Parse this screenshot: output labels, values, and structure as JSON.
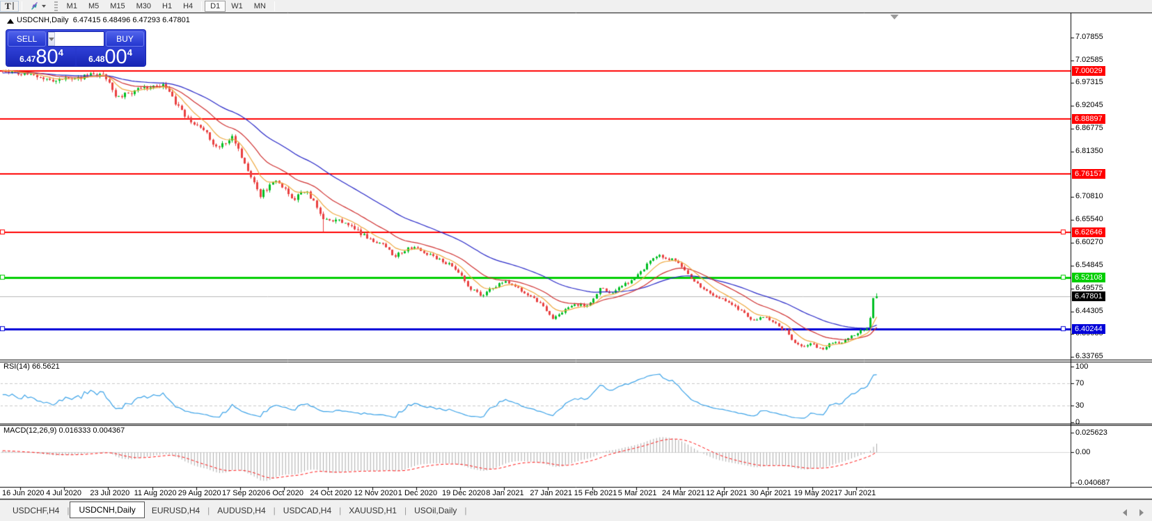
{
  "toolbar": {
    "text_tool": "T",
    "timeframes": [
      "M1",
      "M5",
      "M15",
      "M30",
      "H1",
      "H4",
      "D1",
      "W1",
      "MN"
    ],
    "active_timeframe": "D1"
  },
  "one_click": {
    "sell_label": "SELL",
    "buy_label": "BUY",
    "volume": "2.00",
    "sell_price_small": "6.47",
    "sell_price_big": "80",
    "sell_price_sup": "4",
    "buy_price_small": "6.48",
    "buy_price_big": "00",
    "buy_price_sup": "4"
  },
  "chart": {
    "symbol": "USDCNH,Daily",
    "ohlc": "6.47415 6.48496 6.47293 6.47801",
    "last_candle": {
      "open": 6.47415,
      "high": 6.48496,
      "low": 6.47293,
      "close": 6.47801
    },
    "price_axis_ticks": [
      "7.07855",
      "7.02585",
      "6.97315",
      "6.92045",
      "6.86775",
      "6.81350",
      "6.70810",
      "6.65540",
      "6.60270",
      "6.54845",
      "6.49575",
      "6.44305",
      "6.39035",
      "6.33765"
    ],
    "level_lines": [
      {
        "label": "7.00029",
        "price": 7.00029,
        "color": "#ff0000",
        "width": 2,
        "handles": false
      },
      {
        "label": "6.88897",
        "price": 6.88897,
        "color": "#ff0000",
        "width": 2,
        "handles": false
      },
      {
        "label": "6.76157",
        "price": 6.76157,
        "color": "#ff0000",
        "width": 2,
        "handles": false
      },
      {
        "label": "6.62646",
        "price": 6.62646,
        "color": "#ff0000",
        "width": 2,
        "handles": true
      },
      {
        "label": "6.52108",
        "price": 6.52108,
        "color": "#00ce00",
        "width": 3,
        "handles": true
      },
      {
        "label": "6.40244",
        "price": 6.40244,
        "color": "#0000d8",
        "width": 3,
        "handles": true
      }
    ],
    "current_price": {
      "label": "6.47801",
      "price": 6.47801,
      "line_color": "#b8b8b8",
      "badge_color": "#000000"
    },
    "date_labels": [
      "16 Jun 2020",
      "4 Jul 2020",
      "23 Jul 2020",
      "11 Aug 2020",
      "29 Aug 2020",
      "17 Sep 2020",
      "6 Oct 2020",
      "24 Oct 2020",
      "12 Nov 2020",
      "1 Dec 2020",
      "19 Dec 2020",
      "8 Jan 2021",
      "27 Jan 2021",
      "15 Feb 2021",
      "5 Mar 2021",
      "24 Mar 2021",
      "12 Apr 2021",
      "30 Apr 2021",
      "19 May 2021",
      "7 Jun 2021"
    ],
    "price_path": [
      [
        -350,
        6.962
      ],
      [
        -200,
        6.988
      ],
      [
        -90,
        7.0
      ],
      [
        -20,
        7.005
      ],
      [
        20,
        6.998
      ],
      [
        50,
        6.99
      ],
      [
        75,
        6.978
      ],
      [
        110,
        6.986
      ],
      [
        148,
        6.996
      ],
      [
        168,
        6.937
      ],
      [
        200,
        6.962
      ],
      [
        235,
        6.967
      ],
      [
        262,
        6.9
      ],
      [
        290,
        6.868
      ],
      [
        312,
        6.818
      ],
      [
        332,
        6.852
      ],
      [
        352,
        6.78
      ],
      [
        372,
        6.712
      ],
      [
        396,
        6.75
      ],
      [
        420,
        6.705
      ],
      [
        440,
        6.722
      ],
      [
        462,
        6.663
      ],
      [
        482,
        6.655
      ],
      [
        505,
        6.64
      ],
      [
        522,
        6.618
      ],
      [
        548,
        6.598
      ],
      [
        565,
        6.572
      ],
      [
        590,
        6.592
      ],
      [
        612,
        6.578
      ],
      [
        632,
        6.562
      ],
      [
        652,
        6.545
      ],
      [
        672,
        6.5
      ],
      [
        690,
        6.478
      ],
      [
        708,
        6.5
      ],
      [
        722,
        6.512
      ],
      [
        742,
        6.496
      ],
      [
        762,
        6.478
      ],
      [
        778,
        6.458
      ],
      [
        792,
        6.425
      ],
      [
        806,
        6.443
      ],
      [
        822,
        6.462
      ],
      [
        842,
        6.455
      ],
      [
        862,
        6.5
      ],
      [
        877,
        6.482
      ],
      [
        892,
        6.503
      ],
      [
        912,
        6.522
      ],
      [
        932,
        6.558
      ],
      [
        947,
        6.572
      ],
      [
        962,
        6.565
      ],
      [
        977,
        6.548
      ],
      [
        992,
        6.52
      ],
      [
        1012,
        6.49
      ],
      [
        1032,
        6.475
      ],
      [
        1052,
        6.458
      ],
      [
        1067,
        6.44
      ],
      [
        1082,
        6.42
      ],
      [
        1097,
        6.432
      ],
      [
        1112,
        6.418
      ],
      [
        1127,
        6.398
      ],
      [
        1138,
        6.372
      ],
      [
        1152,
        6.358
      ],
      [
        1166,
        6.368
      ],
      [
        1180,
        6.352
      ],
      [
        1194,
        6.372
      ],
      [
        1208,
        6.368
      ],
      [
        1222,
        6.385
      ],
      [
        1236,
        6.398
      ],
      [
        1244,
        6.403
      ],
      [
        1250,
        6.435
      ],
      [
        1254,
        6.458
      ],
      [
        1258,
        6.478
      ]
    ],
    "ma_periods": {
      "fast": 8,
      "mid": 20,
      "slow": 45
    },
    "colors": {
      "up": "#00bf23",
      "down": "#e94040",
      "ma_fast": "#efa93f",
      "ma_mid": "#d03030",
      "ma_slow": "#2828c8",
      "level_red": "#ff0000",
      "level_green": "#00ce00",
      "level_blue": "#0000d8"
    }
  },
  "rsi": {
    "label": "RSI(14) 66.5621",
    "period": 14,
    "value": "66.5621",
    "axis_ticks": [
      "100",
      "70",
      "30",
      "0"
    ],
    "levels": [
      70,
      30
    ],
    "line_color": "#3aa2e8"
  },
  "macd": {
    "label": "MACD(12,26,9) 0.016333 0.004367",
    "values": "0.016333 0.004367",
    "axis_ticks": [
      "0.025623",
      "0.00",
      "-0.040687"
    ],
    "histogram_color": "#ababab",
    "signal_color": "#ff1414"
  },
  "tabs": [
    "USDCHF,H4",
    "USDCNH,Daily",
    "EURUSD,H4",
    "AUDUSD,H4",
    "USDCAD,H4",
    "XAUUSD,H1",
    "USOil,Daily"
  ],
  "active_tab": "USDCNH,Daily"
}
